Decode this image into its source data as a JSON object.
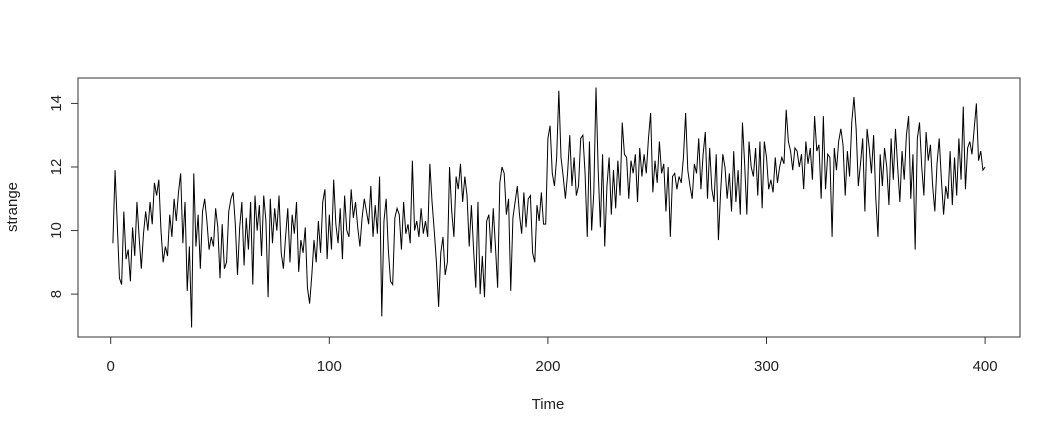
{
  "chart_data": {
    "type": "line",
    "xlabel": "Time",
    "ylabel": "strange",
    "color": "#000000",
    "xlim": [
      -14.96,
      415.96
    ],
    "ylim": [
      6.65,
      14.8
    ],
    "xticks": [
      0,
      100,
      200,
      300,
      400
    ],
    "yticks": [
      8,
      10,
      12,
      14
    ],
    "x": [
      1,
      2,
      3,
      4,
      5,
      6,
      7,
      8,
      9,
      10,
      11,
      12,
      13,
      14,
      15,
      16,
      17,
      18,
      19,
      20,
      21,
      22,
      23,
      24,
      25,
      26,
      27,
      28,
      29,
      30,
      31,
      32,
      33,
      34,
      35,
      36,
      37,
      38,
      39,
      40,
      41,
      42,
      43,
      44,
      45,
      46,
      47,
      48,
      49,
      50,
      51,
      52,
      53,
      54,
      55,
      56,
      57,
      58,
      59,
      60,
      61,
      62,
      63,
      64,
      65,
      66,
      67,
      68,
      69,
      70,
      71,
      72,
      73,
      74,
      75,
      76,
      77,
      78,
      79,
      80,
      81,
      82,
      83,
      84,
      85,
      86,
      87,
      88,
      89,
      90,
      91,
      92,
      93,
      94,
      95,
      96,
      97,
      98,
      99,
      100,
      101,
      102,
      103,
      104,
      105,
      106,
      107,
      108,
      109,
      110,
      111,
      112,
      113,
      114,
      115,
      116,
      117,
      118,
      119,
      120,
      121,
      122,
      123,
      124,
      125,
      126,
      127,
      128,
      129,
      130,
      131,
      132,
      133,
      134,
      135,
      136,
      137,
      138,
      139,
      140,
      141,
      142,
      143,
      144,
      145,
      146,
      147,
      148,
      149,
      150,
      151,
      152,
      153,
      154,
      155,
      156,
      157,
      158,
      159,
      160,
      161,
      162,
      163,
      164,
      165,
      166,
      167,
      168,
      169,
      170,
      171,
      172,
      173,
      174,
      175,
      176,
      177,
      178,
      179,
      180,
      181,
      182,
      183,
      184,
      185,
      186,
      187,
      188,
      189,
      190,
      191,
      192,
      193,
      194,
      195,
      196,
      197,
      198,
      199,
      200,
      201,
      202,
      203,
      204,
      205,
      206,
      207,
      208,
      209,
      210,
      211,
      212,
      213,
      214,
      215,
      216,
      217,
      218,
      219,
      220,
      221,
      222,
      223,
      224,
      225,
      226,
      227,
      228,
      229,
      230,
      231,
      232,
      233,
      234,
      235,
      236,
      237,
      238,
      239,
      240,
      241,
      242,
      243,
      244,
      245,
      246,
      247,
      248,
      249,
      250,
      251,
      252,
      253,
      254,
      255,
      256,
      257,
      258,
      259,
      260,
      261,
      262,
      263,
      264,
      265,
      266,
      267,
      268,
      269,
      270,
      271,
      272,
      273,
      274,
      275,
      276,
      277,
      278,
      279,
      280,
      281,
      282,
      283,
      284,
      285,
      286,
      287,
      288,
      289,
      290,
      291,
      292,
      293,
      294,
      295,
      296,
      297,
      298,
      299,
      300,
      301,
      302,
      303,
      304,
      305,
      306,
      307,
      308,
      309,
      310,
      311,
      312,
      313,
      314,
      315,
      316,
      317,
      318,
      319,
      320,
      321,
      322,
      323,
      324,
      325,
      326,
      327,
      328,
      329,
      330,
      331,
      332,
      333,
      334,
      335,
      336,
      337,
      338,
      339,
      340,
      341,
      342,
      343,
      344,
      345,
      346,
      347,
      348,
      349,
      350,
      351,
      352,
      353,
      354,
      355,
      356,
      357,
      358,
      359,
      360,
      361,
      362,
      363,
      364,
      365,
      366,
      367,
      368,
      369,
      370,
      371,
      372,
      373,
      374,
      375,
      376,
      377,
      378,
      379,
      380,
      381,
      382,
      383,
      384,
      385,
      386,
      387,
      388,
      389,
      390,
      391,
      392,
      393,
      394,
      395,
      396,
      397,
      398,
      399,
      400
    ],
    "values": [
      9.6,
      11.9,
      10.2,
      8.5,
      8.3,
      10.6,
      9.1,
      9.4,
      8.4,
      10.1,
      9.2,
      10.9,
      9.8,
      8.8,
      9.9,
      10.6,
      10.0,
      10.9,
      10.2,
      11.5,
      11.1,
      11.6,
      10.0,
      9.0,
      9.5,
      9.2,
      10.5,
      9.8,
      11.0,
      10.3,
      11.2,
      11.8,
      9.6,
      10.9,
      8.1,
      9.5,
      6.95,
      11.8,
      9.5,
      10.5,
      8.8,
      10.6,
      11.0,
      10.3,
      9.4,
      9.8,
      9.5,
      10.7,
      10.1,
      8.5,
      10.2,
      8.8,
      9.0,
      10.6,
      11.0,
      11.2,
      10.2,
      8.6,
      10.1,
      10.9,
      8.9,
      10.4,
      9.4,
      10.9,
      8.3,
      11.1,
      10.0,
      10.8,
      9.2,
      11.1,
      10.3,
      7.9,
      11.0,
      9.6,
      10.7,
      10.0,
      11.1,
      9.3,
      8.8,
      9.8,
      10.7,
      9.0,
      10.5,
      9.9,
      10.9,
      8.7,
      9.7,
      9.3,
      10.1,
      8.2,
      7.7,
      8.6,
      9.7,
      9.0,
      10.3,
      9.3,
      10.9,
      11.3,
      9.1,
      10.5,
      9.4,
      11.6,
      10.2,
      9.6,
      10.7,
      9.1,
      11.1,
      10.0,
      9.8,
      11.3,
      10.4,
      10.9,
      10.1,
      9.5,
      10.4,
      11.0,
      10.6,
      10.2,
      11.4,
      9.8,
      10.8,
      9.9,
      11.7,
      7.3,
      10.3,
      11.0,
      9.4,
      8.4,
      8.3,
      10.4,
      10.7,
      10.5,
      9.4,
      10.9,
      9.9,
      10.2,
      9.6,
      12.2,
      10.0,
      10.3,
      9.8,
      10.7,
      9.9,
      10.3,
      9.8,
      12.1,
      10.9,
      10.0,
      9.0,
      7.6,
      9.3,
      9.8,
      8.6,
      9.0,
      12.0,
      10.6,
      9.8,
      11.7,
      11.3,
      12.1,
      10.9,
      11.7,
      11.1,
      9.5,
      10.8,
      9.4,
      8.2,
      10.9,
      8.0,
      9.2,
      7.9,
      10.3,
      10.5,
      9.3,
      10.7,
      9.5,
      8.2,
      11.5,
      12.0,
      11.8,
      10.5,
      11.0,
      8.1,
      10.4,
      10.9,
      11.4,
      10.5,
      9.9,
      11.2,
      10.1,
      11.0,
      11.1,
      9.3,
      9.0,
      10.8,
      10.3,
      11.2,
      10.2,
      10.2,
      12.9,
      13.3,
      11.8,
      11.4,
      12.3,
      14.4,
      12.3,
      11.7,
      11.0,
      11.8,
      13.0,
      11.4,
      12.3,
      11.1,
      11.4,
      12.9,
      13.0,
      11.8,
      9.8,
      12.8,
      10.0,
      11.2,
      14.5,
      11.9,
      10.1,
      12.4,
      9.5,
      11.4,
      12.3,
      10.5,
      11.9,
      10.7,
      12.2,
      11.1,
      13.4,
      12.4,
      12.3,
      11.0,
      12.2,
      11.8,
      12.4,
      10.9,
      12.6,
      11.7,
      12.4,
      11.8,
      12.9,
      13.7,
      11.2,
      12.2,
      11.5,
      12.8,
      11.8,
      12.1,
      10.6,
      12.0,
      9.8,
      11.7,
      11.8,
      11.3,
      11.7,
      11.5,
      12.3,
      13.7,
      11.9,
      11.4,
      11.0,
      12.1,
      11.8,
      12.9,
      11.3,
      12.4,
      13.1,
      11.0,
      12.6,
      11.3,
      10.9,
      12.4,
      9.7,
      11.2,
      12.4,
      12.0,
      11.0,
      11.8,
      10.6,
      12.5,
      10.9,
      11.9,
      10.5,
      13.4,
      12.1,
      10.5,
      12.8,
      12.0,
      11.7,
      12.6,
      11.1,
      12.8,
      10.7,
      12.8,
      12.3,
      11.3,
      11.6,
      11.2,
      12.3,
      11.5,
      12.0,
      12.3,
      12.1,
      13.8,
      12.8,
      12.5,
      11.9,
      12.6,
      12.5,
      12.0,
      12.4,
      11.3,
      12.8,
      12.1,
      12.6,
      11.6,
      13.6,
      12.5,
      12.7,
      11.0,
      13.6,
      11.3,
      12.4,
      12.3,
      9.8,
      12.6,
      11.9,
      12.8,
      13.2,
      12.7,
      11.1,
      12.5,
      11.7,
      13.4,
      14.2,
      13.2,
      11.4,
      12.1,
      12.9,
      10.6,
      13.2,
      12.6,
      11.8,
      13.0,
      11.0,
      9.8,
      12.4,
      11.4,
      12.6,
      12.0,
      10.8,
      12.9,
      11.6,
      13.2,
      12.0,
      10.9,
      12.5,
      11.6,
      13.0,
      13.6,
      11.0,
      12.4,
      9.4,
      12.9,
      13.4,
      12.0,
      11.1,
      13.1,
      12.2,
      12.7,
      11.4,
      10.6,
      12.1,
      12.9,
      11.6,
      10.5,
      11.4,
      11.0,
      12.5,
      10.8,
      12.3,
      11.1,
      12.9,
      11.6,
      13.9,
      11.3,
      12.6,
      12.8,
      12.4,
      13.2,
      14.0,
      12.2,
      12.5,
      11.9,
      12.0
    ]
  }
}
